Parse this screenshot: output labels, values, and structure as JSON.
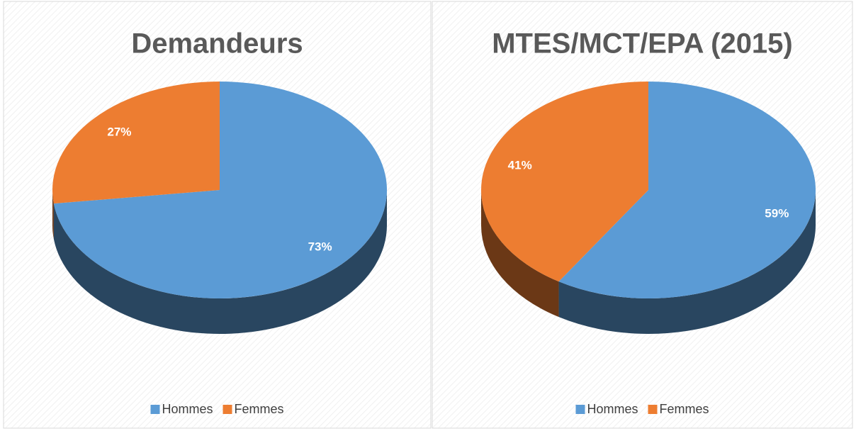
{
  "chart_data": [
    {
      "type": "pie",
      "title": "Demandeurs",
      "categories": [
        "Hommes",
        "Femmes"
      ],
      "values": [
        73,
        27
      ],
      "value_labels": [
        "73%",
        "27%"
      ],
      "colors": [
        "#5b9bd5",
        "#ed7d31"
      ],
      "legend": "bottom"
    },
    {
      "type": "pie",
      "title": "MTES/MCT/EPA  (2015)",
      "categories": [
        "Hommes",
        "Femmes"
      ],
      "values": [
        59,
        41
      ],
      "value_labels": [
        "59%",
        "41%"
      ],
      "colors": [
        "#5b9bd5",
        "#ed7d31"
      ],
      "legend": "bottom"
    }
  ]
}
